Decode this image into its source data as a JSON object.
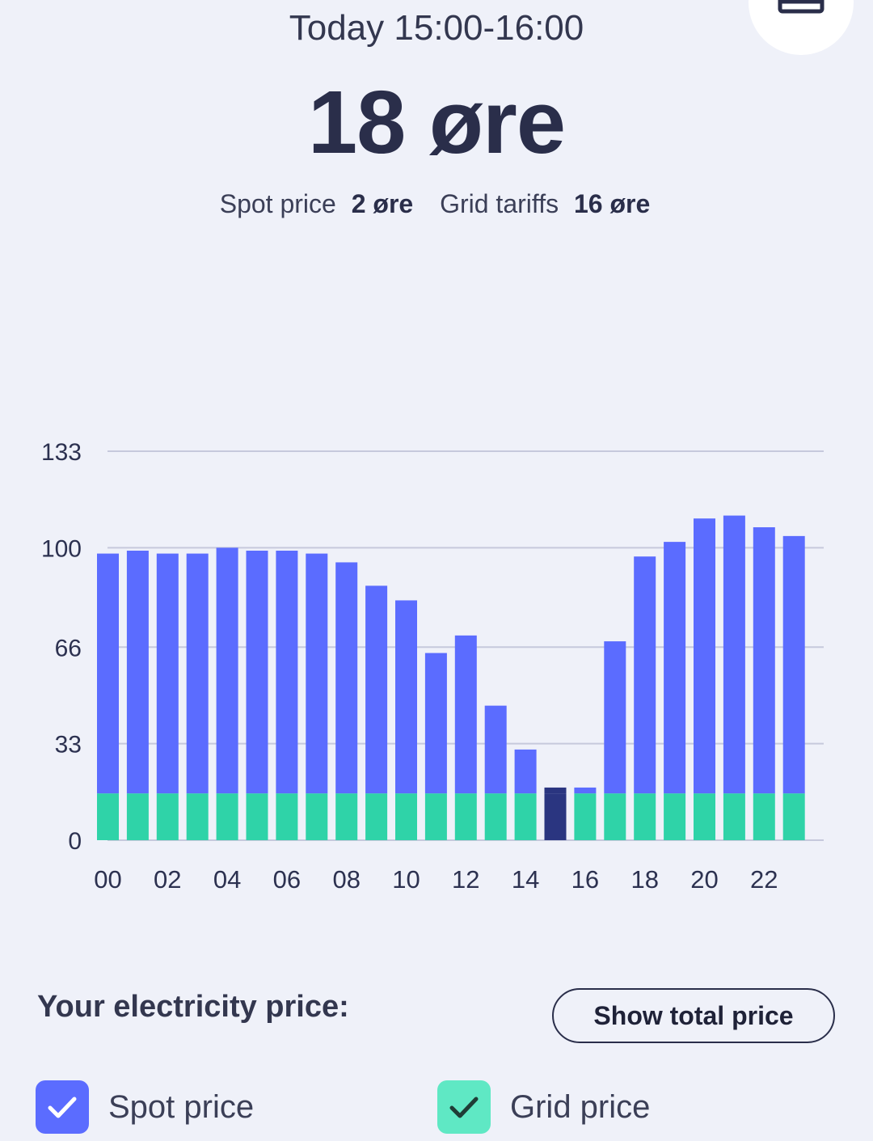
{
  "header": {
    "period": "Today 15:00-16:00",
    "price": "18 øre",
    "spot_label": "Spot price",
    "spot_value": "2 øre",
    "grid_label": "Grid tariffs",
    "grid_value": "16 øre"
  },
  "menu_icon": "table-icon",
  "colors": {
    "spot": "#5b6cff",
    "grid": "#2fd3a8",
    "selected": "#2a3580",
    "gridline": "#c6c9dc",
    "text": "#2c3150"
  },
  "chart_data": {
    "type": "bar",
    "stacked": true,
    "x": [
      "00",
      "01",
      "02",
      "03",
      "04",
      "05",
      "06",
      "07",
      "08",
      "09",
      "10",
      "11",
      "12",
      "13",
      "14",
      "15",
      "16",
      "17",
      "18",
      "19",
      "20",
      "21",
      "22",
      "23"
    ],
    "xticks": [
      "00",
      "02",
      "04",
      "06",
      "08",
      "10",
      "12",
      "14",
      "16",
      "18",
      "20",
      "22"
    ],
    "yticks": [
      0,
      33,
      66,
      100,
      133
    ],
    "ylim": [
      0,
      133
    ],
    "grid": true,
    "selected_index": 15,
    "series": [
      {
        "name": "Grid price",
        "values": [
          16,
          16,
          16,
          16,
          16,
          16,
          16,
          16,
          16,
          16,
          16,
          16,
          16,
          16,
          16,
          16,
          16,
          16,
          16,
          16,
          16,
          16,
          16,
          16
        ]
      },
      {
        "name": "Spot price",
        "values": [
          82,
          83,
          82,
          82,
          84,
          83,
          83,
          82,
          79,
          71,
          66,
          48,
          54,
          30,
          15,
          2,
          2,
          52,
          81,
          86,
          94,
          95,
          91,
          88
        ]
      }
    ]
  },
  "section": {
    "title": "Your electricity price:",
    "button_label": "Show total price"
  },
  "checkboxes": [
    {
      "label": "Spot price",
      "checked": true
    },
    {
      "label": "Grid price",
      "checked": true
    }
  ]
}
